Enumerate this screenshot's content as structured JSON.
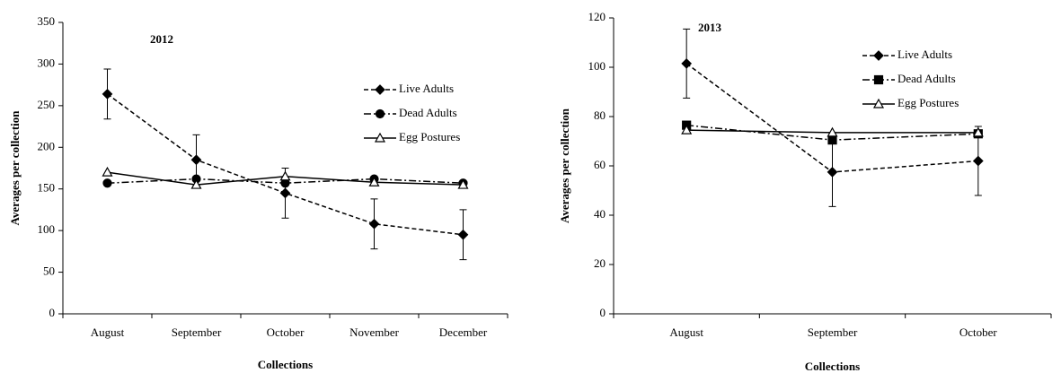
{
  "chart_data": [
    {
      "type": "line",
      "title": "2012",
      "x_label": "Collections",
      "y_label": "Averages per collection",
      "categories": [
        "August",
        "September",
        "October",
        "November",
        "December"
      ],
      "ylim": [
        0,
        350
      ],
      "yticks": [
        0,
        50,
        100,
        150,
        200,
        250,
        300,
        350
      ],
      "series": [
        {
          "name": "Live Adults",
          "color": "#000000",
          "marker": "diamond",
          "dash": "dashed",
          "values": [
            264,
            185,
            145,
            108,
            95
          ],
          "errors": [
            30,
            30,
            30,
            30,
            30
          ]
        },
        {
          "name": "Dead Adults",
          "color": "#000000",
          "marker": "circle",
          "dash": "dashdot",
          "values": [
            157,
            162,
            157,
            162,
            157
          ]
        },
        {
          "name": "Egg Postures",
          "color": "#000000",
          "marker": "triangle-open",
          "dash": "solid",
          "values": [
            170,
            155,
            165,
            158,
            155
          ]
        }
      ]
    },
    {
      "type": "line",
      "title": "2013",
      "x_label": "Collections",
      "y_label": "Averages per collection",
      "categories": [
        "August",
        "September",
        "October"
      ],
      "ylim": [
        0,
        120
      ],
      "yticks": [
        0,
        20,
        40,
        60,
        80,
        100,
        120
      ],
      "series": [
        {
          "name": "Live Adults",
          "color": "#000000",
          "marker": "diamond",
          "dash": "dashed",
          "values": [
            101.5,
            57.5,
            62
          ],
          "errors": [
            14,
            14,
            14
          ]
        },
        {
          "name": "Dead Adults",
          "color": "#000000",
          "marker": "square",
          "dash": "dashdot",
          "values": [
            76.5,
            70.5,
            73
          ]
        },
        {
          "name": "Egg Postures",
          "color": "#000000",
          "marker": "triangle-open",
          "dash": "solid",
          "values": [
            74.5,
            73.5,
            73.5
          ]
        }
      ]
    }
  ]
}
